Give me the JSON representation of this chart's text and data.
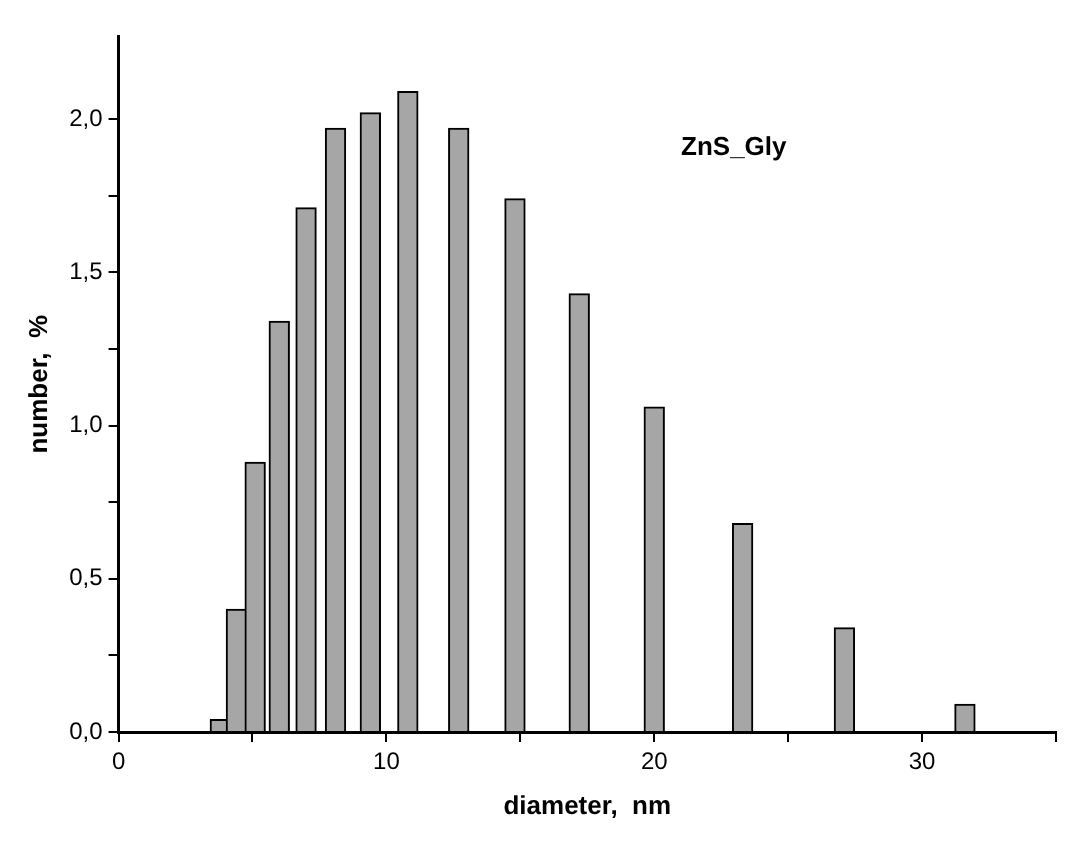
{
  "chart_data": {
    "type": "bar",
    "xlabel": "diameter,  nm",
    "ylabel": "number,  %",
    "annotations": [
      "ZnS_Gly"
    ],
    "x": [
      3.8,
      4.4,
      5.1,
      6.0,
      7.0,
      8.1,
      9.4,
      10.8,
      12.7,
      14.8,
      17.2,
      20.0,
      23.3,
      27.1,
      31.6
    ],
    "values": [
      0.04,
      0.4,
      0.88,
      1.34,
      1.71,
      1.97,
      2.02,
      2.09,
      1.97,
      1.74,
      1.43,
      1.06,
      0.68,
      0.34,
      0.09
    ],
    "color": "#a6a6a6",
    "xlim": [
      0,
      35
    ],
    "xticks": [
      0,
      {
        "value": 5,
        "label": null
      },
      10,
      {
        "value": 15,
        "label": null
      },
      20,
      {
        "value": 25,
        "label": null
      },
      30,
      {
        "value": 35,
        "label": null
      }
    ],
    "ylim": [
      0,
      2.27
    ],
    "yticks": [
      {
        "value": 0,
        "label": "0,0"
      },
      {
        "value": 0.25,
        "label": null
      },
      {
        "value": 0.5,
        "label": "0,5"
      },
      {
        "value": 0.75,
        "label": null
      },
      {
        "value": 1,
        "label": "1,0"
      },
      {
        "value": 1.25,
        "label": null
      },
      {
        "value": 1.5,
        "label": "1,5"
      },
      {
        "value": 1.75,
        "label": null
      },
      {
        "value": 2,
        "label": "2,0"
      }
    ],
    "grid": false,
    "legend": false
  }
}
